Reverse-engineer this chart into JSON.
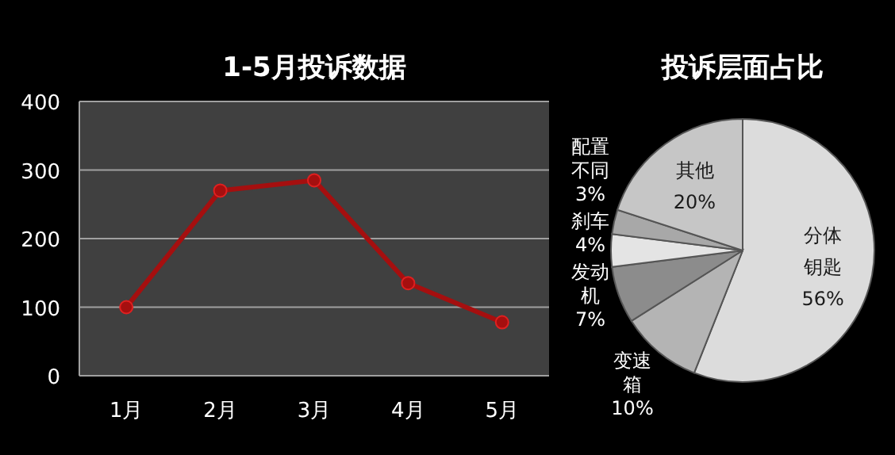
{
  "chart_data": [
    {
      "type": "line",
      "title": "1-5月投诉数据",
      "categories": [
        "1月",
        "2月",
        "3月",
        "4月",
        "5月"
      ],
      "ylim": [
        0,
        400
      ],
      "yticks": [
        0,
        100,
        200,
        300,
        400
      ],
      "grid": "y",
      "marker": "circle",
      "line_style": "solid",
      "series": [
        {
          "color": "#a50f0f",
          "values": [
            100,
            270,
            285,
            135,
            78
          ]
        }
      ]
    },
    {
      "type": "pie",
      "title": "投诉层面占比",
      "value_labels": [
        "56%",
        "10%",
        "7%",
        "4%",
        "3%",
        "20%"
      ],
      "categories": [
        "分体钥匙",
        "变速箱",
        "发动机",
        "刹车",
        "配置不同",
        "其他"
      ],
      "values": [
        56,
        10,
        7,
        4,
        3,
        20
      ],
      "colors": [
        "#dcdcdc",
        "#b4b4b4",
        "#8c8c8c",
        "#e4e4e4",
        "#a8a8a8",
        "#c6c6c6"
      ]
    }
  ]
}
